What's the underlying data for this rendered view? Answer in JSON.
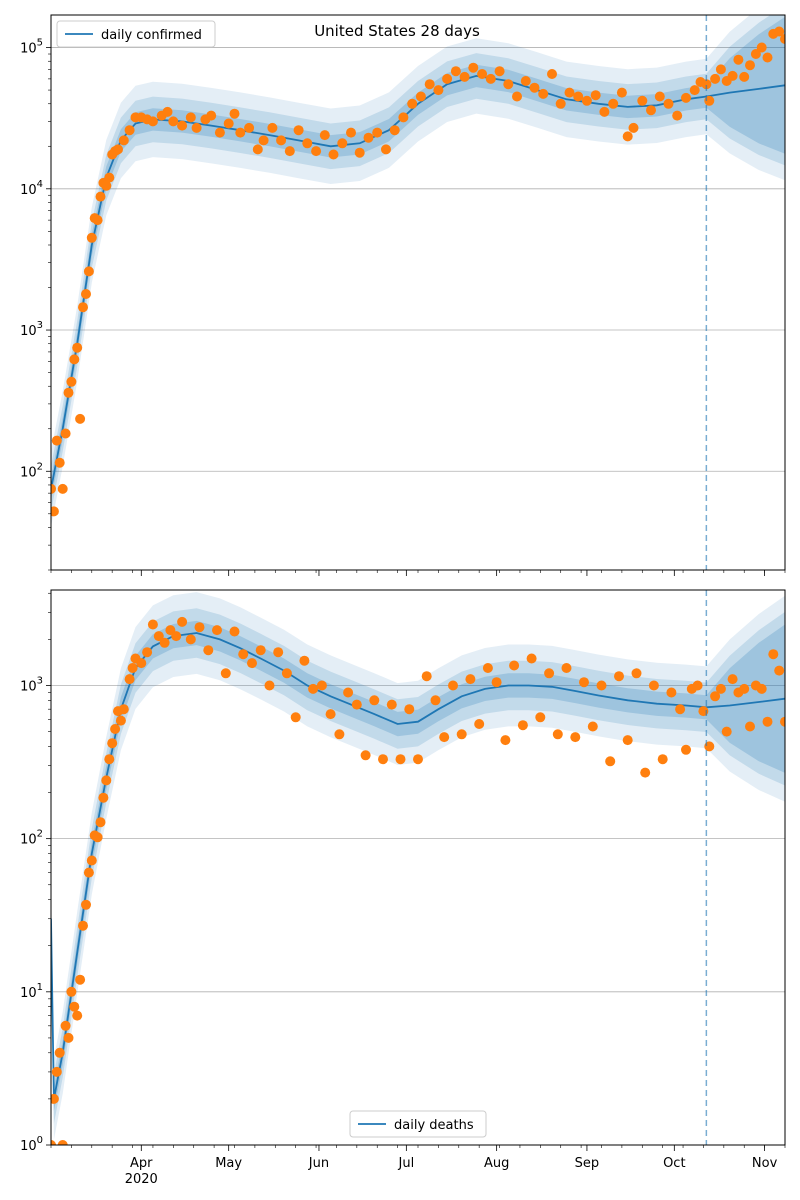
{
  "title": "United States 28 days",
  "colors": {
    "model_line": "#1f77b4",
    "band": "#1f77b4",
    "observed": "#ff7f0e",
    "forecast_line": "#1f77b4",
    "grid": "#b0b0b0"
  },
  "forecast_start_date": "2020-10-12",
  "x_axis": {
    "range": [
      "2020-03-01",
      "2020-11-08"
    ],
    "tick_labels": [
      {
        "date": "2020-04-01",
        "label": "Apr"
      },
      {
        "date": "2020-05-01",
        "label": "May"
      },
      {
        "date": "2020-06-01",
        "label": "Jun"
      },
      {
        "date": "2020-07-01",
        "label": "Jul"
      },
      {
        "date": "2020-08-01",
        "label": "Aug"
      },
      {
        "date": "2020-09-01",
        "label": "Sep"
      },
      {
        "date": "2020-10-01",
        "label": "Oct"
      },
      {
        "date": "2020-11-01",
        "label": "Nov"
      }
    ],
    "year_label": "2020"
  },
  "chart_data": [
    {
      "type": "line",
      "scale": "log",
      "legend": "daily confirmed",
      "legend_position": "top-left",
      "ylim": [
        20,
        170000
      ],
      "y_tick_labels": [
        "10^2",
        "10^3",
        "10^4",
        "10^5"
      ],
      "grid": true,
      "model_points": [
        [
          "2020-03-01",
          75
        ],
        [
          "2020-03-05",
          200
        ],
        [
          "2020-03-10",
          800
        ],
        [
          "2020-03-15",
          4000
        ],
        [
          "2020-03-20",
          12000
        ],
        [
          "2020-03-25",
          22000
        ],
        [
          "2020-03-30",
          29000
        ],
        [
          "2020-04-05",
          31000
        ],
        [
          "2020-04-15",
          30000
        ],
        [
          "2020-04-25",
          28000
        ],
        [
          "2020-05-05",
          26000
        ],
        [
          "2020-05-15",
          24000
        ],
        [
          "2020-05-25",
          22000
        ],
        [
          "2020-06-05",
          20000
        ],
        [
          "2020-06-15",
          21000
        ],
        [
          "2020-06-25",
          26000
        ],
        [
          "2020-07-05",
          40000
        ],
        [
          "2020-07-15",
          55000
        ],
        [
          "2020-07-25",
          63000
        ],
        [
          "2020-08-05",
          58000
        ],
        [
          "2020-08-15",
          50000
        ],
        [
          "2020-08-25",
          43000
        ],
        [
          "2020-09-05",
          40000
        ],
        [
          "2020-09-15",
          38000
        ],
        [
          "2020-09-25",
          39000
        ],
        [
          "2020-10-05",
          43000
        ],
        [
          "2020-10-12",
          45000
        ],
        [
          "2020-10-20",
          48000
        ],
        [
          "2020-10-30",
          51000
        ],
        [
          "2020-11-08",
          54000
        ]
      ],
      "observed": [
        [
          "2020-03-01",
          75
        ],
        [
          "2020-03-02",
          52
        ],
        [
          "2020-03-03",
          165
        ],
        [
          "2020-03-04",
          115
        ],
        [
          "2020-03-05",
          75
        ],
        [
          "2020-03-06",
          185
        ],
        [
          "2020-03-07",
          360
        ],
        [
          "2020-03-08",
          430
        ],
        [
          "2020-03-09",
          620
        ],
        [
          "2020-03-10",
          750
        ],
        [
          "2020-03-11",
          235
        ],
        [
          "2020-03-12",
          1450
        ],
        [
          "2020-03-13",
          1800
        ],
        [
          "2020-03-14",
          2600
        ],
        [
          "2020-03-15",
          4500
        ],
        [
          "2020-03-16",
          6200
        ],
        [
          "2020-03-17",
          6000
        ],
        [
          "2020-03-18",
          8800
        ],
        [
          "2020-03-19",
          11000
        ],
        [
          "2020-03-20",
          10500
        ],
        [
          "2020-03-21",
          12000
        ],
        [
          "2020-03-22",
          17500
        ],
        [
          "2020-03-23",
          18500
        ],
        [
          "2020-03-24",
          19000
        ],
        [
          "2020-03-26",
          22000
        ],
        [
          "2020-03-28",
          26000
        ],
        [
          "2020-03-30",
          32000
        ],
        [
          "2020-04-01",
          32000
        ],
        [
          "2020-04-03",
          31000
        ],
        [
          "2020-04-05",
          30000
        ],
        [
          "2020-04-08",
          33000
        ],
        [
          "2020-04-10",
          35000
        ],
        [
          "2020-04-12",
          30000
        ],
        [
          "2020-04-15",
          28000
        ],
        [
          "2020-04-18",
          32000
        ],
        [
          "2020-04-20",
          27000
        ],
        [
          "2020-04-23",
          31000
        ],
        [
          "2020-04-25",
          33000
        ],
        [
          "2020-04-28",
          25000
        ],
        [
          "2020-05-01",
          29000
        ],
        [
          "2020-05-03",
          34000
        ],
        [
          "2020-05-05",
          25000
        ],
        [
          "2020-05-08",
          27000
        ],
        [
          "2020-05-11",
          19000
        ],
        [
          "2020-05-13",
          22000
        ],
        [
          "2020-05-16",
          27000
        ],
        [
          "2020-05-19",
          22000
        ],
        [
          "2020-05-22",
          18500
        ],
        [
          "2020-05-25",
          26000
        ],
        [
          "2020-05-28",
          21000
        ],
        [
          "2020-05-31",
          18500
        ],
        [
          "2020-06-03",
          24000
        ],
        [
          "2020-06-06",
          17500
        ],
        [
          "2020-06-09",
          21000
        ],
        [
          "2020-06-12",
          25000
        ],
        [
          "2020-06-15",
          18000
        ],
        [
          "2020-06-18",
          23000
        ],
        [
          "2020-06-21",
          25000
        ],
        [
          "2020-06-24",
          19000
        ],
        [
          "2020-06-27",
          26000
        ],
        [
          "2020-06-30",
          32000
        ],
        [
          "2020-07-03",
          40000
        ],
        [
          "2020-07-06",
          45000
        ],
        [
          "2020-07-09",
          55000
        ],
        [
          "2020-07-12",
          50000
        ],
        [
          "2020-07-15",
          60000
        ],
        [
          "2020-07-18",
          68000
        ],
        [
          "2020-07-21",
          62000
        ],
        [
          "2020-07-24",
          72000
        ],
        [
          "2020-07-27",
          65000
        ],
        [
          "2020-07-30",
          60000
        ],
        [
          "2020-08-02",
          68000
        ],
        [
          "2020-08-05",
          55000
        ],
        [
          "2020-08-08",
          45000
        ],
        [
          "2020-08-11",
          58000
        ],
        [
          "2020-08-14",
          52000
        ],
        [
          "2020-08-17",
          47000
        ],
        [
          "2020-08-20",
          65000
        ],
        [
          "2020-08-23",
          40000
        ],
        [
          "2020-08-26",
          48000
        ],
        [
          "2020-08-29",
          45000
        ],
        [
          "2020-09-01",
          42000
        ],
        [
          "2020-09-04",
          46000
        ],
        [
          "2020-09-07",
          35000
        ],
        [
          "2020-09-10",
          40000
        ],
        [
          "2020-09-13",
          48000
        ],
        [
          "2020-09-15",
          23500
        ],
        [
          "2020-09-17",
          27000
        ],
        [
          "2020-09-20",
          42000
        ],
        [
          "2020-09-23",
          36000
        ],
        [
          "2020-09-26",
          45000
        ],
        [
          "2020-09-29",
          40000
        ],
        [
          "2020-10-02",
          33000
        ],
        [
          "2020-10-05",
          44000
        ],
        [
          "2020-10-08",
          50000
        ],
        [
          "2020-10-10",
          57000
        ],
        [
          "2020-10-12",
          55000
        ],
        [
          "2020-10-13",
          42000
        ],
        [
          "2020-10-15",
          60000
        ],
        [
          "2020-10-17",
          70000
        ],
        [
          "2020-10-19",
          58000
        ],
        [
          "2020-10-21",
          63000
        ],
        [
          "2020-10-23",
          82000
        ],
        [
          "2020-10-25",
          62000
        ],
        [
          "2020-10-27",
          75000
        ],
        [
          "2020-10-29",
          90000
        ],
        [
          "2020-10-31",
          100000
        ],
        [
          "2020-11-02",
          85000
        ],
        [
          "2020-11-04",
          125000
        ],
        [
          "2020-11-06",
          130000
        ],
        [
          "2020-11-08",
          115000
        ]
      ]
    },
    {
      "type": "line",
      "scale": "log",
      "legend": "daily deaths",
      "legend_position": "bottom-center",
      "ylim": [
        1,
        4200
      ],
      "y_tick_labels": [
        "10^0",
        "10^1",
        "10^2",
        "10^3"
      ],
      "grid": true,
      "model_points": [
        [
          "2020-03-01",
          30
        ],
        [
          "2020-03-02",
          2
        ],
        [
          "2020-03-05",
          4
        ],
        [
          "2020-03-10",
          18
        ],
        [
          "2020-03-15",
          80
        ],
        [
          "2020-03-20",
          250
        ],
        [
          "2020-03-25",
          700
        ],
        [
          "2020-03-30",
          1300
        ],
        [
          "2020-04-05",
          1800
        ],
        [
          "2020-04-12",
          2100
        ],
        [
          "2020-04-20",
          2200
        ],
        [
          "2020-04-28",
          2000
        ],
        [
          "2020-05-05",
          1750
        ],
        [
          "2020-05-12",
          1500
        ],
        [
          "2020-05-20",
          1250
        ],
        [
          "2020-05-28",
          1000
        ],
        [
          "2020-06-05",
          850
        ],
        [
          "2020-06-12",
          750
        ],
        [
          "2020-06-20",
          650
        ],
        [
          "2020-06-28",
          560
        ],
        [
          "2020-07-05",
          580
        ],
        [
          "2020-07-12",
          700
        ],
        [
          "2020-07-20",
          850
        ],
        [
          "2020-07-28",
          950
        ],
        [
          "2020-08-05",
          1000
        ],
        [
          "2020-08-12",
          1000
        ],
        [
          "2020-08-20",
          980
        ],
        [
          "2020-08-28",
          920
        ],
        [
          "2020-09-05",
          860
        ],
        [
          "2020-09-15",
          800
        ],
        [
          "2020-09-25",
          760
        ],
        [
          "2020-10-05",
          740
        ],
        [
          "2020-10-12",
          720
        ],
        [
          "2020-10-20",
          740
        ],
        [
          "2020-10-30",
          780
        ],
        [
          "2020-11-08",
          820
        ]
      ],
      "observed": [
        [
          "2020-03-01",
          1
        ],
        [
          "2020-03-02",
          2
        ],
        [
          "2020-03-03",
          3
        ],
        [
          "2020-03-04",
          4
        ],
        [
          "2020-03-05",
          1
        ],
        [
          "2020-03-06",
          6
        ],
        [
          "2020-03-07",
          5
        ],
        [
          "2020-03-08",
          10
        ],
        [
          "2020-03-09",
          8
        ],
        [
          "2020-03-10",
          7
        ],
        [
          "2020-03-11",
          12
        ],
        [
          "2020-03-12",
          27
        ],
        [
          "2020-03-13",
          37
        ],
        [
          "2020-03-14",
          60
        ],
        [
          "2020-03-15",
          72
        ],
        [
          "2020-03-16",
          105
        ],
        [
          "2020-03-17",
          102
        ],
        [
          "2020-03-18",
          128
        ],
        [
          "2020-03-19",
          185
        ],
        [
          "2020-03-20",
          240
        ],
        [
          "2020-03-21",
          330
        ],
        [
          "2020-03-22",
          420
        ],
        [
          "2020-03-23",
          520
        ],
        [
          "2020-03-24",
          680
        ],
        [
          "2020-03-25",
          590
        ],
        [
          "2020-03-26",
          700
        ],
        [
          "2020-03-28",
          1100
        ],
        [
          "2020-03-29",
          1300
        ],
        [
          "2020-03-30",
          1500
        ],
        [
          "2020-04-01",
          1400
        ],
        [
          "2020-04-03",
          1650
        ],
        [
          "2020-04-05",
          2500
        ],
        [
          "2020-04-07",
          2100
        ],
        [
          "2020-04-09",
          1900
        ],
        [
          "2020-04-11",
          2300
        ],
        [
          "2020-04-13",
          2100
        ],
        [
          "2020-04-15",
          2600
        ],
        [
          "2020-04-18",
          2000
        ],
        [
          "2020-04-21",
          2400
        ],
        [
          "2020-04-24",
          1700
        ],
        [
          "2020-04-27",
          2300
        ],
        [
          "2020-04-30",
          1200
        ],
        [
          "2020-05-03",
          2250
        ],
        [
          "2020-05-06",
          1600
        ],
        [
          "2020-05-09",
          1400
        ],
        [
          "2020-05-12",
          1700
        ],
        [
          "2020-05-15",
          1000
        ],
        [
          "2020-05-18",
          1650
        ],
        [
          "2020-05-21",
          1200
        ],
        [
          "2020-05-24",
          620
        ],
        [
          "2020-05-27",
          1450
        ],
        [
          "2020-05-30",
          950
        ],
        [
          "2020-06-02",
          1000
        ],
        [
          "2020-06-05",
          650
        ],
        [
          "2020-06-08",
          480
        ],
        [
          "2020-06-11",
          900
        ],
        [
          "2020-06-14",
          750
        ],
        [
          "2020-06-17",
          350
        ],
        [
          "2020-06-20",
          800
        ],
        [
          "2020-06-23",
          330
        ],
        [
          "2020-06-26",
          750
        ],
        [
          "2020-06-29",
          330
        ],
        [
          "2020-07-02",
          700
        ],
        [
          "2020-07-05",
          330
        ],
        [
          "2020-07-08",
          1150
        ],
        [
          "2020-07-11",
          800
        ],
        [
          "2020-07-14",
          460
        ],
        [
          "2020-07-17",
          1000
        ],
        [
          "2020-07-20",
          480
        ],
        [
          "2020-07-23",
          1100
        ],
        [
          "2020-07-26",
          560
        ],
        [
          "2020-07-29",
          1300
        ],
        [
          "2020-08-01",
          1050
        ],
        [
          "2020-08-04",
          440
        ],
        [
          "2020-08-07",
          1350
        ],
        [
          "2020-08-10",
          550
        ],
        [
          "2020-08-13",
          1500
        ],
        [
          "2020-08-16",
          620
        ],
        [
          "2020-08-19",
          1200
        ],
        [
          "2020-08-22",
          480
        ],
        [
          "2020-08-25",
          1300
        ],
        [
          "2020-08-28",
          460
        ],
        [
          "2020-08-31",
          1050
        ],
        [
          "2020-09-03",
          540
        ],
        [
          "2020-09-06",
          1000
        ],
        [
          "2020-09-09",
          320
        ],
        [
          "2020-09-12",
          1150
        ],
        [
          "2020-09-15",
          440
        ],
        [
          "2020-09-18",
          1200
        ],
        [
          "2020-09-21",
          270
        ],
        [
          "2020-09-24",
          1000
        ],
        [
          "2020-09-27",
          330
        ],
        [
          "2020-09-30",
          900
        ],
        [
          "2020-10-03",
          700
        ],
        [
          "2020-10-05",
          380
        ],
        [
          "2020-10-07",
          950
        ],
        [
          "2020-10-09",
          1000
        ],
        [
          "2020-10-11",
          680
        ],
        [
          "2020-10-13",
          400
        ],
        [
          "2020-10-15",
          850
        ],
        [
          "2020-10-17",
          950
        ],
        [
          "2020-10-19",
          500
        ],
        [
          "2020-10-21",
          1100
        ],
        [
          "2020-10-23",
          900
        ],
        [
          "2020-10-25",
          950
        ],
        [
          "2020-10-27",
          540
        ],
        [
          "2020-10-29",
          1000
        ],
        [
          "2020-10-31",
          950
        ],
        [
          "2020-11-02",
          580
        ],
        [
          "2020-11-04",
          1600
        ],
        [
          "2020-11-06",
          1250
        ],
        [
          "2020-11-08",
          580
        ]
      ]
    }
  ]
}
